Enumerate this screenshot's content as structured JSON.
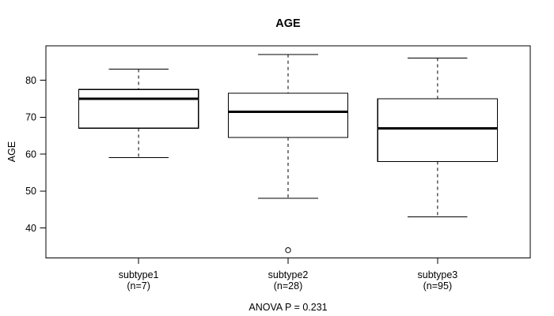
{
  "chart_data": {
    "type": "boxplot",
    "title": "AGE",
    "ylabel": "AGE",
    "footer": "ANOVA P = 0.231",
    "anova_p": 0.231,
    "yticks": [
      40,
      50,
      60,
      70,
      80
    ],
    "ylim": [
      31.9,
      89.3
    ],
    "xlim": [
      0.38,
      3.62
    ],
    "grid": false,
    "legend": null,
    "box_width_units": 0.8,
    "colors": {
      "line": "#000000",
      "box_fill": "#ffffff",
      "background": "#ffffff"
    },
    "groups": [
      {
        "label": "subtype1",
        "n_label": "(n=7)",
        "position": 1,
        "whisker_low": 59,
        "q1": 67,
        "median": 75,
        "q3": 77.5,
        "whisker_high": 83,
        "outliers": []
      },
      {
        "label": "subtype2",
        "n_label": "(n=28)",
        "position": 2,
        "whisker_low": 48,
        "q1": 64.5,
        "median": 71.5,
        "q3": 76.5,
        "whisker_high": 87,
        "outliers": [
          34
        ]
      },
      {
        "label": "subtype3",
        "n_label": "(n=95)",
        "position": 3,
        "whisker_low": 43,
        "q1": 58,
        "median": 67,
        "q3": 75,
        "whisker_high": 86,
        "outliers": []
      }
    ]
  }
}
